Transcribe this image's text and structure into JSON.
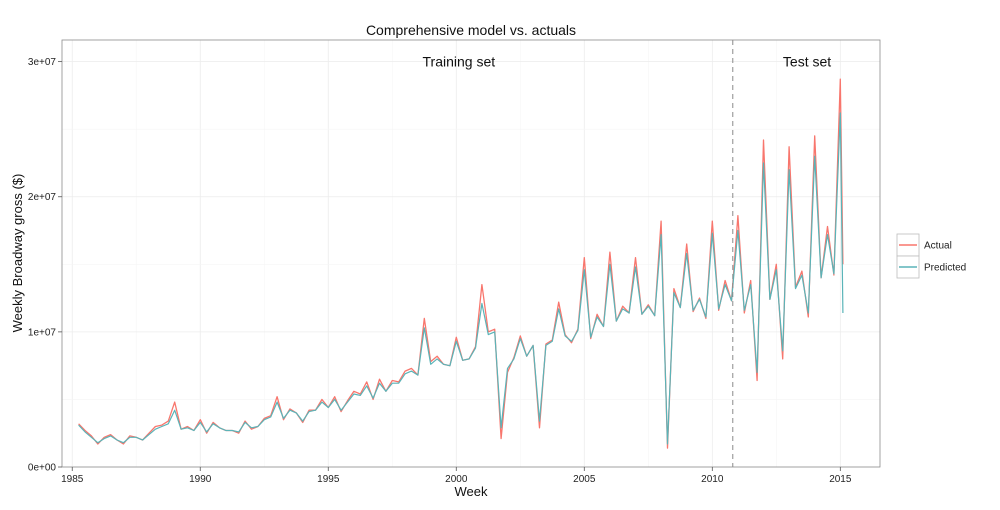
{
  "chart_data": {
    "type": "line",
    "title": "Comprehensive model vs. actuals",
    "xlabel": "Week",
    "ylabel": "Weekly Broadway gross ($)",
    "xlim": [
      1984.6,
      2016.55
    ],
    "ylim": [
      0,
      31600000
    ],
    "x_ticks": [
      1985,
      1990,
      1995,
      2000,
      2005,
      2010,
      2015
    ],
    "x_tick_labels": [
      "1985",
      "1990",
      "1995",
      "2000",
      "2005",
      "2010",
      "2015"
    ],
    "y_ticks": [
      0,
      10000000,
      20000000,
      30000000
    ],
    "y_tick_labels": [
      "0e+00",
      "1e+07",
      "2e+07",
      "3e+07"
    ],
    "grid": true,
    "legend_position": "right",
    "split_x": 2010.8,
    "annotations": [
      {
        "text": "Training set",
        "x": 2000.1,
        "y": 30000000
      },
      {
        "text": "Test set",
        "x": 2013.7,
        "y": 30000000
      }
    ],
    "series": [
      {
        "name": "Actual",
        "color": "#F8766D",
        "x": [
          1985.25,
          1985.5,
          1985.75,
          1986.0,
          1986.25,
          1986.5,
          1986.75,
          1987.0,
          1987.25,
          1987.5,
          1987.75,
          1988.0,
          1988.25,
          1988.5,
          1988.75,
          1989.0,
          1989.25,
          1989.5,
          1989.75,
          1990.0,
          1990.25,
          1990.5,
          1990.75,
          1991.0,
          1991.25,
          1991.5,
          1991.75,
          1992.0,
          1992.25,
          1992.5,
          1992.75,
          1993.0,
          1993.25,
          1993.5,
          1993.75,
          1994.0,
          1994.25,
          1994.5,
          1994.75,
          1995.0,
          1995.25,
          1995.5,
          1995.75,
          1996.0,
          1996.25,
          1996.5,
          1996.75,
          1997.0,
          1997.25,
          1997.5,
          1997.75,
          1998.0,
          1998.25,
          1998.5,
          1998.75,
          1999.0,
          1999.25,
          1999.5,
          1999.75,
          2000.0,
          2000.25,
          2000.5,
          2000.75,
          2001.0,
          2001.25,
          2001.5,
          2001.75,
          2002.0,
          2002.25,
          2002.5,
          2002.75,
          2003.0,
          2003.25,
          2003.5,
          2003.75,
          2004.0,
          2004.25,
          2004.5,
          2004.75,
          2005.0,
          2005.25,
          2005.5,
          2005.75,
          2006.0,
          2006.25,
          2006.5,
          2006.75,
          2007.0,
          2007.25,
          2007.5,
          2007.75,
          2008.0,
          2008.25,
          2008.5,
          2008.75,
          2009.0,
          2009.25,
          2009.5,
          2009.75,
          2010.0,
          2010.25,
          2010.5,
          2010.75,
          2011.0,
          2011.25,
          2011.5,
          2011.75,
          2012.0,
          2012.25,
          2012.5,
          2012.75,
          2013.0,
          2013.25,
          2013.5,
          2013.75,
          2014.0,
          2014.25,
          2014.5,
          2014.75,
          2015.0,
          2015.1
        ],
        "values": [
          3200000,
          2700000,
          2300000,
          1700000,
          2200000,
          2400000,
          2000000,
          1700000,
          2300000,
          2200000,
          2000000,
          2500000,
          3000000,
          3100000,
          3400000,
          4800000,
          2800000,
          3000000,
          2700000,
          3500000,
          2500000,
          3300000,
          2900000,
          2700000,
          2700000,
          2500000,
          3400000,
          2800000,
          3000000,
          3600000,
          3800000,
          5200000,
          3500000,
          4300000,
          4000000,
          3300000,
          4200000,
          4200000,
          5000000,
          4400000,
          5200000,
          4100000,
          4900000,
          5600000,
          5400000,
          6300000,
          5000000,
          6500000,
          5600000,
          6400000,
          6300000,
          7100000,
          7300000,
          6800000,
          11000000,
          7800000,
          8200000,
          7600000,
          7500000,
          9600000,
          7900000,
          8000000,
          8900000,
          13500000,
          10000000,
          10200000,
          2100000,
          7000000,
          8100000,
          9700000,
          8200000,
          9000000,
          2900000,
          9100000,
          9400000,
          12200000,
          9800000,
          9200000,
          10200000,
          15500000,
          9500000,
          11300000,
          10400000,
          15900000,
          10800000,
          11900000,
          11400000,
          15500000,
          11300000,
          12000000,
          11200000,
          18200000,
          1400000,
          13200000,
          11800000,
          16500000,
          11500000,
          12500000,
          11000000,
          18200000,
          11600000,
          13800000,
          12300000,
          18600000,
          11400000,
          13800000,
          6400000,
          24200000,
          12400000,
          15000000,
          8000000,
          23700000,
          13300000,
          14500000,
          11100000,
          24500000,
          14000000,
          17800000,
          14200000,
          28700000,
          15000000
        ]
      },
      {
        "name": "Predicted",
        "color": "#5AB4B8",
        "x": [
          1985.25,
          1985.5,
          1985.75,
          1986.0,
          1986.25,
          1986.5,
          1986.75,
          1987.0,
          1987.25,
          1987.5,
          1987.75,
          1988.0,
          1988.25,
          1988.5,
          1988.75,
          1989.0,
          1989.25,
          1989.5,
          1989.75,
          1990.0,
          1990.25,
          1990.5,
          1990.75,
          1991.0,
          1991.25,
          1991.5,
          1991.75,
          1992.0,
          1992.25,
          1992.5,
          1992.75,
          1993.0,
          1993.25,
          1993.5,
          1993.75,
          1994.0,
          1994.25,
          1994.5,
          1994.75,
          1995.0,
          1995.25,
          1995.5,
          1995.75,
          1996.0,
          1996.25,
          1996.5,
          1996.75,
          1997.0,
          1997.25,
          1997.5,
          1997.75,
          1998.0,
          1998.25,
          1998.5,
          1998.75,
          1999.0,
          1999.25,
          1999.5,
          1999.75,
          2000.0,
          2000.25,
          2000.5,
          2000.75,
          2001.0,
          2001.25,
          2001.5,
          2001.75,
          2002.0,
          2002.25,
          2002.5,
          2002.75,
          2003.0,
          2003.25,
          2003.5,
          2003.75,
          2004.0,
          2004.25,
          2004.5,
          2004.75,
          2005.0,
          2005.25,
          2005.5,
          2005.75,
          2006.0,
          2006.25,
          2006.5,
          2006.75,
          2007.0,
          2007.25,
          2007.5,
          2007.75,
          2008.0,
          2008.25,
          2008.5,
          2008.75,
          2009.0,
          2009.25,
          2009.5,
          2009.75,
          2010.0,
          2010.25,
          2010.5,
          2010.75,
          2011.0,
          2011.25,
          2011.5,
          2011.75,
          2012.0,
          2012.25,
          2012.5,
          2012.75,
          2013.0,
          2013.25,
          2013.5,
          2013.75,
          2014.0,
          2014.25,
          2014.5,
          2014.75,
          2015.0,
          2015.1
        ],
        "values": [
          3100000,
          2600000,
          2200000,
          1800000,
          2100000,
          2300000,
          2000000,
          1800000,
          2200000,
          2200000,
          2000000,
          2400000,
          2800000,
          3000000,
          3200000,
          4200000,
          2800000,
          2900000,
          2700000,
          3300000,
          2600000,
          3200000,
          2900000,
          2700000,
          2700000,
          2600000,
          3300000,
          2900000,
          3000000,
          3500000,
          3700000,
          4800000,
          3600000,
          4200000,
          4000000,
          3400000,
          4100000,
          4200000,
          4800000,
          4400000,
          5000000,
          4200000,
          4800000,
          5400000,
          5300000,
          6000000,
          5100000,
          6200000,
          5600000,
          6200000,
          6200000,
          6900000,
          7100000,
          6800000,
          10300000,
          7600000,
          8000000,
          7600000,
          7500000,
          9300000,
          7900000,
          8000000,
          8800000,
          12100000,
          9800000,
          10000000,
          2900000,
          7300000,
          8000000,
          9500000,
          8200000,
          9000000,
          3400000,
          9000000,
          9300000,
          11700000,
          9700000,
          9300000,
          10100000,
          14600000,
          9600000,
          11100000,
          10400000,
          15000000,
          10800000,
          11700000,
          11400000,
          14800000,
          11300000,
          11900000,
          11200000,
          17200000,
          1700000,
          12900000,
          11800000,
          15800000,
          11600000,
          12400000,
          11100000,
          17300000,
          11700000,
          13500000,
          12300000,
          17500000,
          11600000,
          13500000,
          7000000,
          22500000,
          12400000,
          14600000,
          8600000,
          22000000,
          13200000,
          14200000,
          11400000,
          23000000,
          14000000,
          17200000,
          14300000,
          26200000,
          11400000
        ]
      }
    ]
  }
}
